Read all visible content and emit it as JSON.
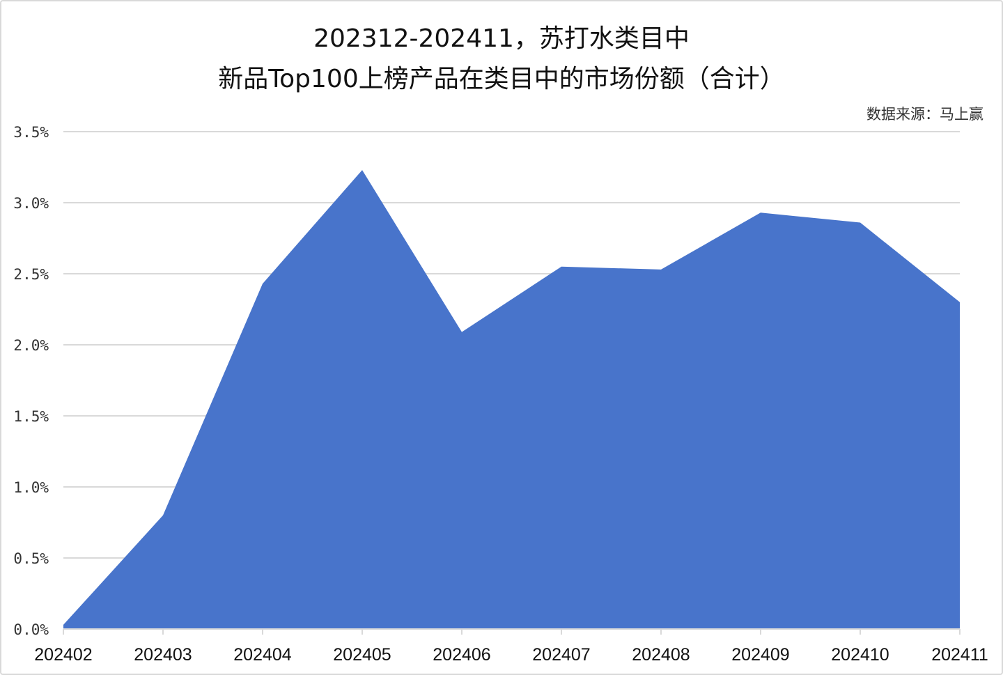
{
  "chart_data": {
    "type": "area",
    "title_line1": "202312-202411，苏打水类目中",
    "title_line2": "新品Top100上榜产品在类目中的市场份额（合计）",
    "source": "数据来源：马上赢",
    "categories": [
      "202402",
      "202403",
      "202404",
      "202405",
      "202406",
      "202407",
      "202408",
      "202409",
      "202410",
      "202411"
    ],
    "series": [
      {
        "values": [
          0.03,
          0.8,
          2.43,
          3.23,
          2.09,
          2.55,
          2.53,
          2.93,
          2.86,
          2.3
        ]
      }
    ],
    "unit": "%",
    "ylim": [
      0,
      3.5
    ],
    "yticks": [
      "0.0%",
      "0.5%",
      "1.0%",
      "1.5%",
      "2.0%",
      "2.5%",
      "3.0%",
      "3.5%"
    ],
    "grid": true,
    "legend": "none",
    "colors": {
      "area": "#4874cb",
      "grid": "#d9d9d9"
    }
  }
}
